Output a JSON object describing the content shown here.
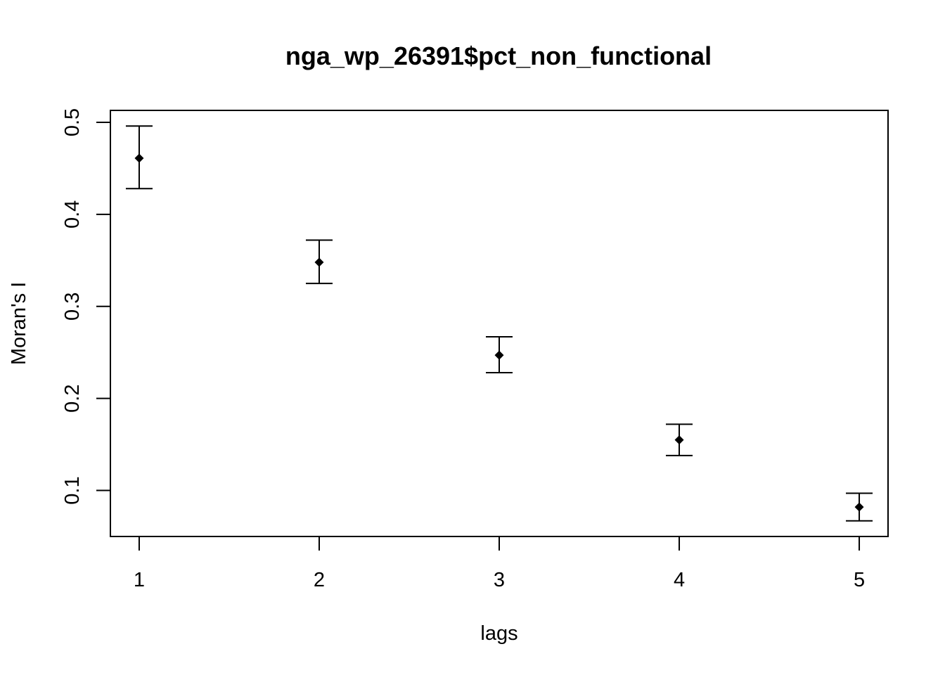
{
  "chart_data": {
    "type": "scatter",
    "title": "nga_wp_26391$pct_non_functional",
    "xlabel": "lags",
    "ylabel": "Moran's  I",
    "x_ticks": [
      "1",
      "2",
      "3",
      "4",
      "5"
    ],
    "y_ticks": [
      "0.1",
      "0.2",
      "0.3",
      "0.4",
      "0.5"
    ],
    "xlim": [
      0.84,
      5.16
    ],
    "ylim": [
      0.05,
      0.513
    ],
    "grid": false,
    "legend": "none",
    "points": [
      {
        "x": 1,
        "y": 0.461,
        "lower": 0.428,
        "upper": 0.496
      },
      {
        "x": 2,
        "y": 0.348,
        "lower": 0.325,
        "upper": 0.372
      },
      {
        "x": 3,
        "y": 0.247,
        "lower": 0.228,
        "upper": 0.267
      },
      {
        "x": 4,
        "y": 0.155,
        "lower": 0.138,
        "upper": 0.172
      },
      {
        "x": 5,
        "y": 0.082,
        "lower": 0.067,
        "upper": 0.097
      }
    ]
  }
}
